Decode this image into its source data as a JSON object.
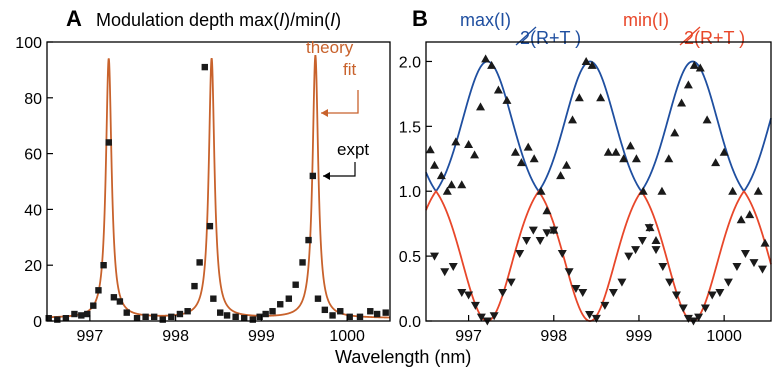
{
  "colors": {
    "theory_orange": "#c8622c",
    "blue_curve": "#1f4fa0",
    "red_curve": "#e8472a",
    "marker": "#1a1a1a",
    "axis": "#000000"
  },
  "chart_data": [
    {
      "panel": "A",
      "type": "line",
      "title": "Modulation depth max(I)/min(I)",
      "title_parts": [
        "Modulation depth max(",
        "I",
        ")/min(",
        "I",
        ")"
      ],
      "xlabel": "Wavelength (nm)",
      "ylabel": "",
      "xlim": [
        996.5,
        1000.5
      ],
      "ylim": [
        0,
        100
      ],
      "xticks": [
        997,
        998,
        999,
        1000
      ],
      "yticks": [
        0,
        20,
        40,
        60,
        80,
        100
      ],
      "grid": false,
      "annotations": [
        {
          "text": "theory",
          "color": "#c8622c"
        },
        {
          "text": "fit",
          "color": "#c8622c"
        },
        {
          "text": "expt",
          "color": "#000000"
        }
      ],
      "series": [
        {
          "kind": "line",
          "model": "lorentzian-peaks",
          "color": "#c8622c",
          "peaks": [
            {
              "center": 997.22,
              "height": 94
            },
            {
              "center": 998.42,
              "height": 94
            },
            {
              "center": 999.63,
              "height": 95
            }
          ],
          "baseline": 1.0,
          "hwhm": 0.04
        },
        {
          "kind": "scatter",
          "marker": "square",
          "color": "#1a1a1a",
          "x": [
            996.52,
            996.62,
            996.72,
            996.82,
            996.9,
            996.97,
            997.04,
            997.1,
            997.16,
            997.22,
            997.28,
            997.35,
            997.43,
            997.55,
            997.65,
            997.75,
            997.85,
            997.95,
            998.05,
            998.14,
            998.22,
            998.28,
            998.34,
            998.4,
            998.44,
            998.52,
            998.6,
            998.7,
            998.8,
            998.9,
            998.98,
            999.05,
            999.13,
            999.22,
            999.32,
            999.4,
            999.48,
            999.55,
            999.6,
            999.66,
            999.74,
            999.83,
            999.92,
            1000.03,
            1000.15,
            1000.27,
            1000.35,
            1000.45
          ],
          "y": [
            1,
            0.5,
            1,
            2.5,
            2,
            2.5,
            5.5,
            11,
            20,
            64,
            8.5,
            7,
            3,
            1,
            1.5,
            1.5,
            0.5,
            1.5,
            2.5,
            3.5,
            12.5,
            21,
            91,
            34,
            8,
            3,
            2,
            1.5,
            1,
            0.5,
            1.5,
            2.5,
            3.5,
            6,
            8,
            13,
            21,
            29,
            52,
            8,
            4,
            2,
            3.5,
            1.5,
            1.5,
            3.5,
            2.5,
            3
          ]
        }
      ]
    },
    {
      "panel": "B",
      "type": "line",
      "title": "",
      "legend_texts": [
        {
          "text": "max(I)",
          "denominator": "2(R+T )",
          "color": "#1f4fa0"
        },
        {
          "text": "min(I)",
          "denominator": "2(R+T )",
          "color": "#e8472a"
        }
      ],
      "xlabel": "Wavelength (nm)",
      "ylabel": "",
      "xlim": [
        996.5,
        1000.55
      ],
      "ylim": [
        0,
        2.15
      ],
      "xticks": [
        997,
        998,
        999,
        1000
      ],
      "yticks": [
        0.0,
        0.5,
        1.0,
        1.5,
        2.0
      ],
      "grid": false,
      "series": [
        {
          "name": "max(I)/2(R+T)",
          "kind": "line",
          "model": "periodic-cusp",
          "color": "#1f4fa0",
          "period": 1.205,
          "centers": [
            997.22,
            998.42,
            999.63
          ],
          "peak": 2.0,
          "valley": 1.0
        },
        {
          "name": "min(I)/2(R+T)",
          "kind": "line",
          "model": "periodic-cusp",
          "color": "#e8472a",
          "period": 1.205,
          "centers": [
            997.22,
            998.42,
            999.63
          ],
          "peak": 0.0,
          "valley": 1.0
        },
        {
          "kind": "scatter",
          "marker": "triangle-up",
          "color": "#1a1a1a",
          "x": [
            996.55,
            996.6,
            996.68,
            996.75,
            996.8,
            996.85,
            996.92,
            997.0,
            997.07,
            997.14,
            997.2,
            997.27,
            997.35,
            997.45,
            997.55,
            997.62,
            997.7,
            997.77,
            997.85,
            997.92,
            998.0,
            998.08,
            998.15,
            998.22,
            998.3,
            998.38,
            998.45,
            998.55,
            998.64,
            998.73,
            998.82,
            998.9,
            998.97,
            999.05,
            999.13,
            999.2,
            999.27,
            999.35,
            999.42,
            999.5,
            999.58,
            999.65,
            999.72,
            999.8,
            999.9,
            1000.0,
            1000.1,
            1000.2,
            1000.3,
            1000.4,
            1000.48
          ],
          "y": [
            1.32,
            1.2,
            1.12,
            1.0,
            1.05,
            1.38,
            1.05,
            1.36,
            1.28,
            1.65,
            2.02,
            1.97,
            1.78,
            1.7,
            1.3,
            1.22,
            1.34,
            1.25,
            1.0,
            0.85,
            0.7,
            1.12,
            1.2,
            1.55,
            1.72,
            2.0,
            1.97,
            1.72,
            1.3,
            1.3,
            1.25,
            1.35,
            1.25,
            1.0,
            0.72,
            0.62,
            1.0,
            1.25,
            1.45,
            1.68,
            1.82,
            1.97,
            1.95,
            1.55,
            1.22,
            1.3,
            1.0,
            0.78,
            0.82,
            1.0,
            0.6
          ]
        },
        {
          "kind": "scatter",
          "marker": "triangle-down",
          "color": "#1a1a1a",
          "x": [
            996.6,
            996.72,
            996.82,
            996.92,
            997.0,
            997.08,
            997.15,
            997.22,
            997.3,
            997.4,
            997.5,
            997.6,
            997.68,
            997.76,
            997.84,
            997.92,
            998.0,
            998.1,
            998.18,
            998.26,
            998.34,
            998.42,
            998.5,
            998.6,
            998.7,
            998.8,
            998.88,
            998.96,
            999.04,
            999.12,
            999.2,
            999.28,
            999.36,
            999.44,
            999.52,
            999.58,
            999.64,
            999.7,
            999.78,
            999.86,
            999.95,
            1000.05,
            1000.15,
            1000.25,
            1000.35,
            1000.45
          ],
          "y": [
            0.5,
            0.38,
            0.42,
            0.22,
            0.2,
            0.12,
            0.03,
            0.0,
            0.04,
            0.22,
            0.3,
            0.52,
            0.62,
            0.7,
            0.62,
            0.68,
            0.7,
            0.52,
            0.38,
            0.25,
            0.22,
            0.05,
            0.02,
            0.12,
            0.22,
            0.3,
            0.5,
            0.55,
            0.62,
            0.72,
            0.55,
            0.42,
            0.3,
            0.2,
            0.1,
            0.02,
            0.0,
            0.03,
            0.1,
            0.2,
            0.22,
            0.3,
            0.42,
            0.52,
            0.45,
            0.4
          ]
        }
      ]
    }
  ]
}
